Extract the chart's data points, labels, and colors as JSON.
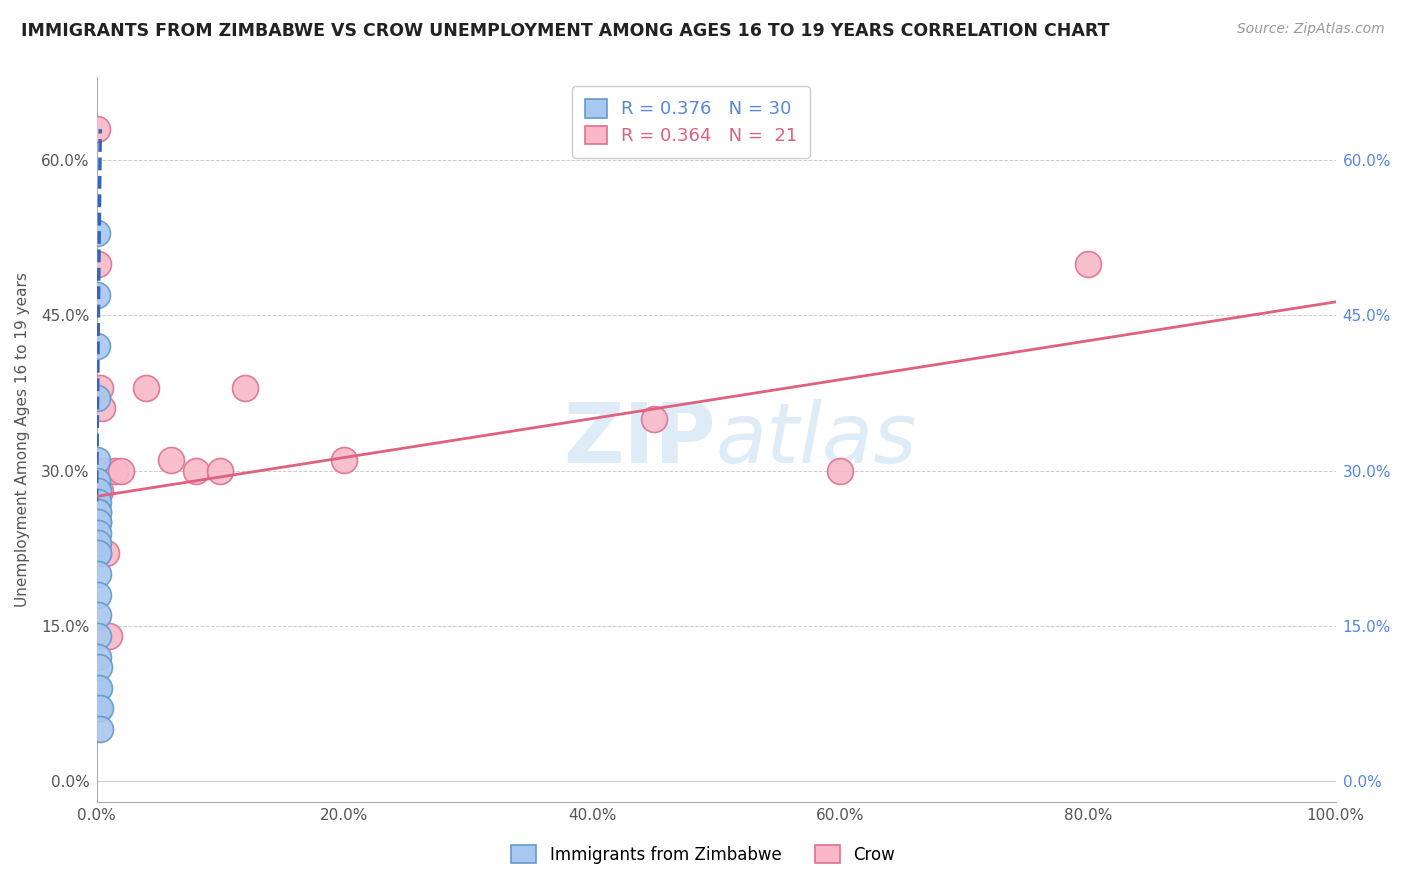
{
  "title": "IMMIGRANTS FROM ZIMBABWE VS CROW UNEMPLOYMENT AMONG AGES 16 TO 19 YEARS CORRELATION CHART",
  "source": "Source: ZipAtlas.com",
  "ylabel": "Unemployment Among Ages 16 to 19 years",
  "xlim": [
    0.0,
    1.0
  ],
  "ylim": [
    -0.02,
    0.68
  ],
  "xticks": [
    0.0,
    0.2,
    0.4,
    0.6,
    0.8,
    1.0
  ],
  "xtick_labels": [
    "0.0%",
    "20.0%",
    "40.0%",
    "60.0%",
    "80.0%",
    "100.0%"
  ],
  "yticks": [
    0.0,
    0.15,
    0.3,
    0.45,
    0.6
  ],
  "ytick_labels": [
    "0.0%",
    "15.0%",
    "30.0%",
    "45.0%",
    "60.0%"
  ],
  "blue_label": "Immigrants from Zimbabwe",
  "pink_label": "Crow",
  "blue_R": "0.376",
  "blue_N": "30",
  "pink_R": "0.364",
  "pink_N": "21",
  "blue_color": "#a8c8f0",
  "pink_color": "#f8b8c8",
  "blue_edge": "#6699cc",
  "pink_edge": "#e07090",
  "trend_blue": "#3366bb",
  "trend_pink": "#e06080",
  "watermark_color": "#d0e4f5",
  "blue_points_x": [
    0.0005,
    0.0005,
    0.0005,
    0.0005,
    0.0005,
    0.0005,
    0.0005,
    0.0005,
    0.0005,
    0.0008,
    0.0008,
    0.0008,
    0.0008,
    0.0008,
    0.001,
    0.001,
    0.001,
    0.001,
    0.001,
    0.001,
    0.001,
    0.001,
    0.001,
    0.001,
    0.0015,
    0.0015,
    0.002,
    0.002,
    0.0025,
    0.003
  ],
  "blue_points_y": [
    0.53,
    0.47,
    0.42,
    0.37,
    0.31,
    0.29,
    0.27,
    0.25,
    0.23,
    0.28,
    0.27,
    0.26,
    0.25,
    0.22,
    0.26,
    0.25,
    0.24,
    0.23,
    0.22,
    0.2,
    0.18,
    0.16,
    0.14,
    0.12,
    0.09,
    0.07,
    0.11,
    0.09,
    0.07,
    0.05
  ],
  "pink_points_x": [
    0.0005,
    0.0008,
    0.0012,
    0.0015,
    0.0025,
    0.003,
    0.004,
    0.006,
    0.008,
    0.01,
    0.015,
    0.02,
    0.04,
    0.06,
    0.08,
    0.1,
    0.12,
    0.2,
    0.45,
    0.6,
    0.8
  ],
  "pink_points_y": [
    0.63,
    0.28,
    0.5,
    0.28,
    0.38,
    0.28,
    0.36,
    0.3,
    0.22,
    0.14,
    0.3,
    0.3,
    0.38,
    0.31,
    0.3,
    0.3,
    0.38,
    0.31,
    0.35,
    0.3,
    0.5
  ],
  "blue_trend_x0": 0.0,
  "blue_trend_y0": 0.27,
  "blue_trend_x1": 0.003,
  "blue_trend_y1": 0.63,
  "pink_trend_x0": 0.0,
  "pink_trend_y0": 0.275,
  "pink_trend_x1": 1.0,
  "pink_trend_y1": 0.463
}
